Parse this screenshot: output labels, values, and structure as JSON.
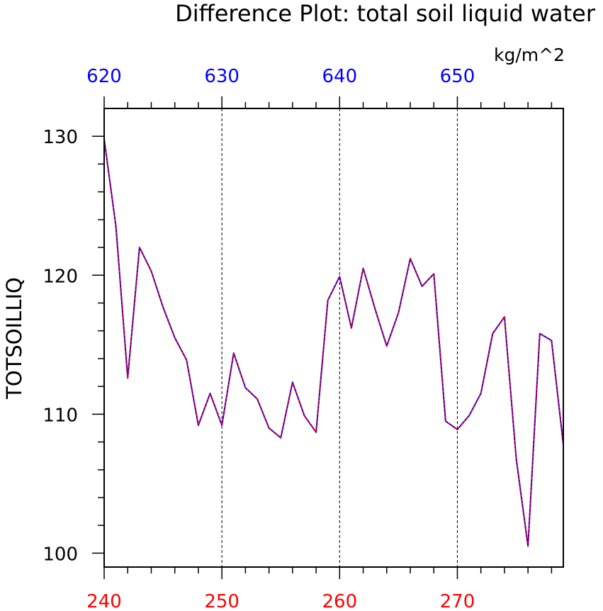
{
  "chart_data": {
    "type": "line",
    "title": "Difference Plot: total soil liquid water",
    "units": "kg/m^2",
    "ylabel": "TOTSOILLIQ",
    "xlabel": "",
    "xlim": [
      240,
      279
    ],
    "ylim": [
      99,
      132
    ],
    "x_ticks": [
      240,
      250,
      260,
      270
    ],
    "y_ticks": [
      100,
      110,
      120,
      130
    ],
    "top_axis": {
      "offset": 380,
      "ticks": [
        620,
        630,
        640,
        650
      ]
    },
    "grid": "vertical dashed at major x ticks",
    "colors": {
      "bottom_axis": "#ff0000",
      "top_axis": "#0000ff",
      "series_a": "#0000ff",
      "series_b": "#ff0000",
      "axes": "#000000",
      "grid": "#000000"
    },
    "x": [
      240,
      241,
      242,
      243,
      244,
      245,
      246,
      247,
      248,
      249,
      250,
      251,
      252,
      253,
      254,
      255,
      256,
      257,
      258,
      259,
      260,
      261,
      262,
      263,
      264,
      265,
      266,
      267,
      268,
      269,
      270,
      271,
      272,
      273,
      274,
      275,
      276,
      277,
      278,
      279
    ],
    "series": [
      {
        "values": [
          129.8,
          123.5,
          112.6,
          122.0,
          120.3,
          117.7,
          115.5,
          113.9,
          109.2,
          111.5,
          109.2,
          114.4,
          111.9,
          111.1,
          109.0,
          108.3,
          112.3,
          109.9,
          108.7,
          118.2,
          119.9,
          116.2,
          120.5,
          117.6,
          114.9,
          117.3,
          121.2,
          119.2,
          120.1,
          109.5,
          108.9,
          109.9,
          111.5,
          115.8,
          117.0,
          106.8,
          100.5,
          115.8,
          115.3,
          107.8
        ]
      },
      {
        "values": [
          129.8,
          123.5,
          112.6,
          122.0,
          120.3,
          117.7,
          115.5,
          113.9,
          109.2,
          111.5,
          109.2,
          114.4,
          111.9,
          111.1,
          109.0,
          108.3,
          112.3,
          109.9,
          108.7,
          118.2,
          119.9,
          116.2,
          120.5,
          117.6,
          114.9,
          117.3,
          121.2,
          119.2,
          120.1,
          109.5,
          108.9,
          109.9,
          111.5,
          115.8,
          117.0,
          106.8,
          100.5,
          115.8,
          115.3,
          107.8
        ]
      }
    ]
  }
}
